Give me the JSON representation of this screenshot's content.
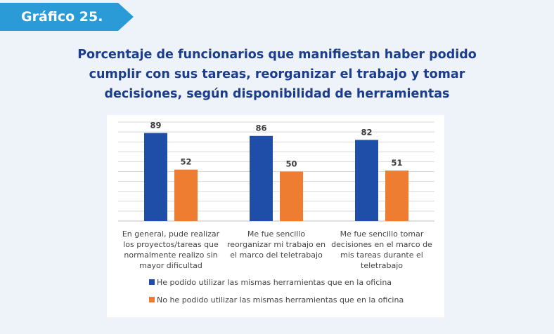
{
  "header": {
    "tag": "Gráfico 25.",
    "title": "Porcentaje de funcionarios que manifiestan haber podido cumplir con sus tareas, reorganizar el trabajo y tomar decisiones, según disponibilidad de herramientas"
  },
  "colors": {
    "tag": "#2a9bd7",
    "title": "#1a3d8f",
    "series_1": "#1f4ea8",
    "series_2": "#ef7d31"
  },
  "chart_data": {
    "type": "bar",
    "title": "Porcentaje de funcionarios que manifiestan haber podido cumplir con sus tareas, reorganizar el trabajo y tomar decisiones, según disponibilidad de herramientas",
    "categories": [
      [
        "En general, pude realizar",
        "los proyectos/tareas que",
        "normalmente realizo sin",
        "mayor dificultad"
      ],
      [
        "Me fue sencillo",
        "reorganizar mi trabajo en",
        "el marco del teletrabajo"
      ],
      [
        "Me fue sencillo tomar",
        "decisiones en el marco de",
        "mis tareas durante el",
        "teletrabajo"
      ]
    ],
    "series": [
      {
        "name": "He podido utilizar las mismas herramientas que en la oficina",
        "values": [
          89,
          86,
          82
        ]
      },
      {
        "name": "No he podido utilizar las mismas herramientas que en la oficina",
        "values": [
          52,
          50,
          51
        ]
      }
    ],
    "ylim": [
      0,
      100
    ],
    "grid": true,
    "legend": "bottom"
  }
}
